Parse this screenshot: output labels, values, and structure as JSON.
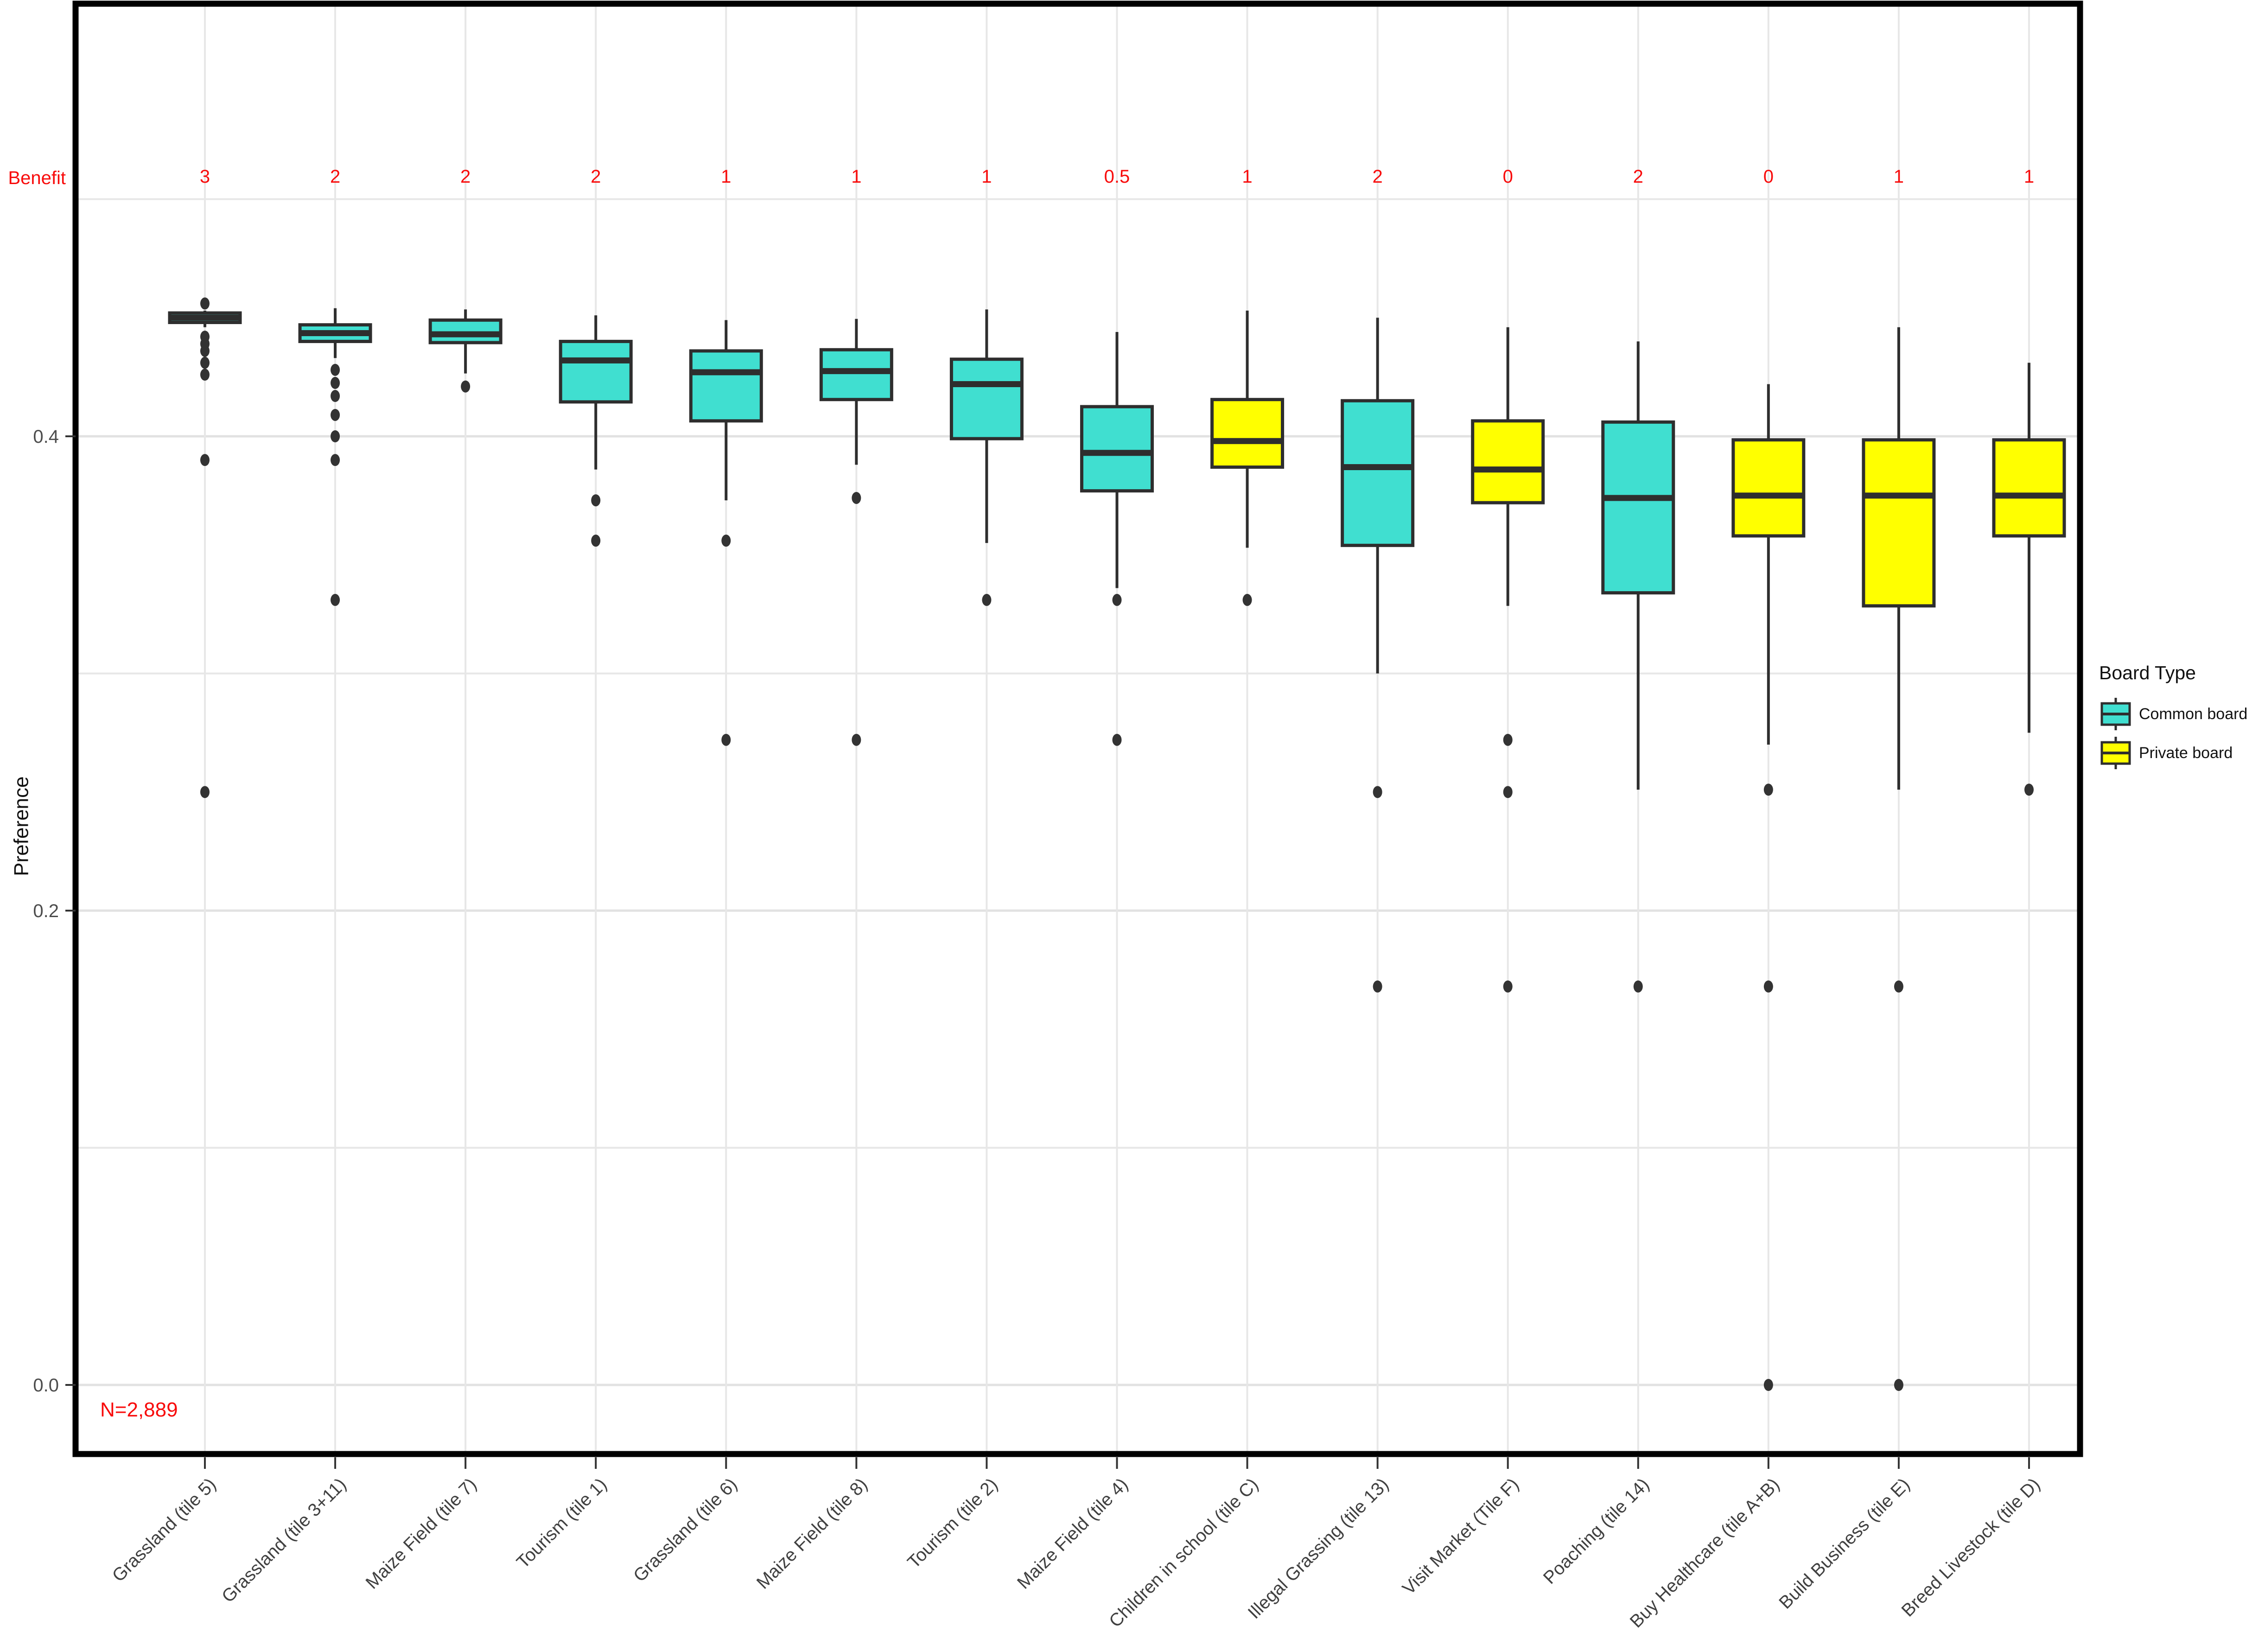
{
  "chart_data": {
    "type": "boxplot",
    "title": "",
    "xlabel": "",
    "ylabel": "Preference",
    "benefit_row_label": "Benefit",
    "n_label": "N=2,889",
    "annotation_color": "#f80b0b",
    "y_ticks": [
      {
        "value": 0.4,
        "label": "0.4"
      },
      {
        "value": 0.2,
        "label": "0.2"
      },
      {
        "value": 0.0,
        "label": "0.0"
      }
    ],
    "y_minor_gridlines": [
      0.5,
      0.3,
      0.1
    ],
    "ylim": [
      -0.029,
      0.582
    ],
    "grid": true,
    "legend": {
      "title": "Board Type",
      "position": "right",
      "items": [
        {
          "label": "Common board",
          "key": "common",
          "color": "#40dfd0"
        },
        {
          "label": "Private board",
          "key": "private",
          "color": "#ffff00"
        }
      ]
    },
    "categories": [
      {
        "label": "Grassland (tile 5)",
        "board": "common",
        "benefit": "3",
        "whisker_low": 0.446,
        "q1": 0.448,
        "median": 0.45,
        "q3": 0.452,
        "whisker_high": 0.453,
        "outliers": [
          0.456,
          0.442,
          0.439,
          0.436,
          0.431,
          0.426,
          0.39,
          0.25
        ]
      },
      {
        "label": "Grassland (tile 3+11)",
        "board": "common",
        "benefit": "2",
        "whisker_low": 0.433,
        "q1": 0.44,
        "median": 0.4435,
        "q3": 0.447,
        "whisker_high": 0.454,
        "outliers": [
          0.428,
          0.4225,
          0.417,
          0.409,
          0.4,
          0.39,
          0.331
        ]
      },
      {
        "label": "Maize Field (tile 7)",
        "board": "common",
        "benefit": "2",
        "whisker_low": 0.4265,
        "q1": 0.4395,
        "median": 0.443,
        "q3": 0.449,
        "whisker_high": 0.4535,
        "outliers": [
          0.421
        ]
      },
      {
        "label": "Tourism (tile 1)",
        "board": "common",
        "benefit": "2",
        "whisker_low": 0.386,
        "q1": 0.4145,
        "median": 0.432,
        "q3": 0.44,
        "whisker_high": 0.451,
        "outliers": [
          0.373,
          0.356
        ]
      },
      {
        "label": "Grassland (tile 6)",
        "board": "common",
        "benefit": "1",
        "whisker_low": 0.373,
        "q1": 0.4065,
        "median": 0.427,
        "q3": 0.436,
        "whisker_high": 0.449,
        "outliers": [
          0.356,
          0.272
        ]
      },
      {
        "label": "Maize Field (tile 8)",
        "board": "common",
        "benefit": "1",
        "whisker_low": 0.388,
        "q1": 0.4155,
        "median": 0.4275,
        "q3": 0.4365,
        "whisker_high": 0.4495,
        "outliers": [
          0.374,
          0.272
        ]
      },
      {
        "label": "Tourism (tile 2)",
        "board": "common",
        "benefit": "1",
        "whisker_low": 0.355,
        "q1": 0.399,
        "median": 0.422,
        "q3": 0.4325,
        "whisker_high": 0.4535,
        "outliers": [
          0.331
        ]
      },
      {
        "label": "Maize Field (tile 4)",
        "board": "common",
        "benefit": "0.5",
        "whisker_low": 0.336,
        "q1": 0.377,
        "median": 0.393,
        "q3": 0.4125,
        "whisker_high": 0.444,
        "outliers": [
          0.331,
          0.272
        ]
      },
      {
        "label": "Children in school (tile C)",
        "board": "private",
        "benefit": "1",
        "whisker_low": 0.353,
        "q1": 0.387,
        "median": 0.398,
        "q3": 0.4155,
        "whisker_high": 0.453,
        "outliers": [
          0.331
        ]
      },
      {
        "label": "Illegal Grassing (tile 13)",
        "board": "common",
        "benefit": "2",
        "whisker_low": 0.3,
        "q1": 0.354,
        "median": 0.387,
        "q3": 0.415,
        "whisker_high": 0.45,
        "outliers": [
          0.25,
          0.168
        ]
      },
      {
        "label": "Visit Market (Tile F)",
        "board": "private",
        "benefit": "0",
        "whisker_low": 0.3285,
        "q1": 0.372,
        "median": 0.386,
        "q3": 0.4065,
        "whisker_high": 0.446,
        "outliers": [
          0.272,
          0.25,
          0.168
        ]
      },
      {
        "label": "Poaching (tile 14)",
        "board": "common",
        "benefit": "2",
        "whisker_low": 0.251,
        "q1": 0.334,
        "median": 0.374,
        "q3": 0.406,
        "whisker_high": 0.44,
        "outliers": [
          0.168
        ]
      },
      {
        "label": "Buy Healthcare (tile A+B)",
        "board": "private",
        "benefit": "0",
        "whisker_low": 0.27,
        "q1": 0.358,
        "median": 0.375,
        "q3": 0.3985,
        "whisker_high": 0.422,
        "outliers": [
          0.251,
          0.168,
          0.0
        ]
      },
      {
        "label": "Build Business (tile E)",
        "board": "private",
        "benefit": "1",
        "whisker_low": 0.251,
        "q1": 0.3285,
        "median": 0.375,
        "q3": 0.3985,
        "whisker_high": 0.446,
        "outliers": [
          0.168,
          0.0
        ]
      },
      {
        "label": "Breed Livestock (tile D)",
        "board": "private",
        "benefit": "1",
        "whisker_low": 0.275,
        "q1": 0.358,
        "median": 0.375,
        "q3": 0.3985,
        "whisker_high": 0.431,
        "outliers": [
          0.251
        ]
      }
    ],
    "style": {
      "box_border_color": "#2e2e2e",
      "outlier_color": "#333333",
      "grid_color": "#e7e7e7",
      "panel_border_color": "#000000",
      "axis_text_color": "#4d4d4d"
    }
  }
}
